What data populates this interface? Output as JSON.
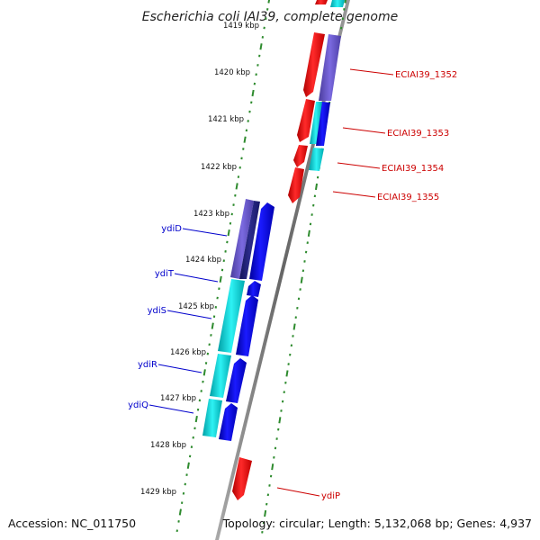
{
  "title": "Escherichia coli IAI39, complete genome",
  "footer": {
    "accession": "Accession: NC_011750",
    "summary": "Topology: circular; Length: 5,132,068 bp; Genes: 4,937"
  },
  "colors": {
    "backbone": "#888888",
    "ticks": "#2e8b2e",
    "forward_label": "#0000cc",
    "reverse_label": "#cc0000",
    "red_gene": "#ff0000",
    "blue_gene": "#0000ee",
    "navy_gene": "#2a2a90",
    "purple_gene": "#6a5acd",
    "cyan_gene": "#00cdd0"
  },
  "kbp_labels": [
    "1419 kbp",
    "1420 kbp",
    "1421 kbp",
    "1422 kbp",
    "1423 kbp",
    "1424 kbp",
    "1425 kbp",
    "1426 kbp",
    "1427 kbp",
    "1428 kbp",
    "1429 kbp"
  ],
  "genes_forward": [
    "ydiD",
    "ydiT",
    "ydiS",
    "ydiR",
    "ydiQ"
  ],
  "genes_reverse": [
    "ECIAI39_1352",
    "ECIAI39_1353",
    "ECIAI39_1354",
    "ECIAI39_1355",
    "ydiP"
  ]
}
